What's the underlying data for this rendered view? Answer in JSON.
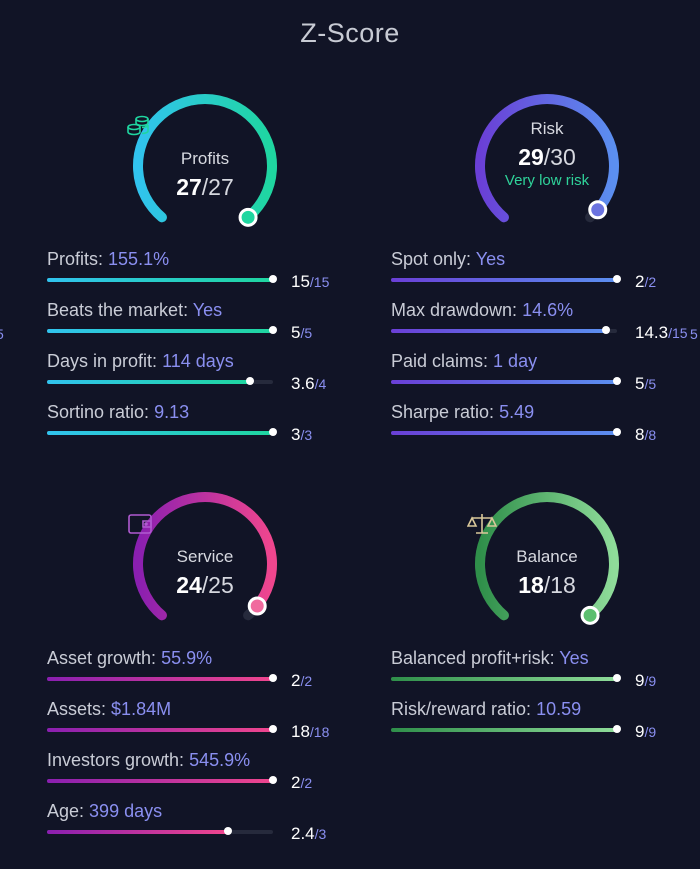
{
  "title": "Z-Score",
  "edge_fragment": "5",
  "edge_fragment_right": "5",
  "colors": {
    "background": "#111426",
    "value_text": "#8a8ff0",
    "profits": [
      "#1fd6a0",
      "#31c3ee"
    ],
    "risk": [
      "#6a3fd6",
      "#5b8ff0"
    ],
    "service": [
      "#8a1fb0",
      "#f0468e"
    ],
    "balance": [
      "#2f8f4a",
      "#8fdc9a"
    ],
    "risk_sub": "#2fd39a"
  },
  "gauges": [
    {
      "id": "profits",
      "label": "Profits",
      "score": "27",
      "max": "/27",
      "sub": "",
      "icon": "coins-icon",
      "fraction": 1.0
    },
    {
      "id": "risk",
      "label": "Risk",
      "score": "29",
      "max": "/30",
      "sub": "Very low risk",
      "icon": "",
      "fraction": 0.967
    },
    {
      "id": "service",
      "label": "Service",
      "score": "24",
      "max": "/25",
      "sub": "",
      "icon": "wallet-icon",
      "fraction": 0.96
    },
    {
      "id": "balance",
      "label": "Balance",
      "score": "18",
      "max": "/18",
      "sub": "",
      "icon": "scales-icon",
      "fraction": 1.0
    }
  ],
  "metrics": {
    "profits": [
      {
        "label": "Profits:",
        "value": "155.1%",
        "score": "15",
        "max": "/15",
        "fraction": 1.0
      },
      {
        "label": "Beats the market:",
        "value": "Yes",
        "score": "5",
        "max": "/5",
        "fraction": 1.0
      },
      {
        "label": "Days in profit:",
        "value": "114 days",
        "score": "3.6",
        "max": "/4",
        "fraction": 0.9
      },
      {
        "label": "Sortino ratio:",
        "value": "9.13",
        "score": "3",
        "max": "/3",
        "fraction": 1.0
      }
    ],
    "risk": [
      {
        "label": "Spot only:",
        "value": "Yes",
        "score": "2",
        "max": "/2",
        "fraction": 1.0
      },
      {
        "label": "Max drawdown:",
        "value": "14.6%",
        "score": "14.3",
        "max": "/15",
        "fraction": 0.953
      },
      {
        "label": "Paid claims:",
        "value": "1 day",
        "score": "5",
        "max": "/5",
        "fraction": 1.0
      },
      {
        "label": "Sharpe ratio:",
        "value": "5.49",
        "score": "8",
        "max": "/8",
        "fraction": 1.0
      }
    ],
    "service": [
      {
        "label": "Asset growth:",
        "value": "55.9%",
        "score": "2",
        "max": "/2",
        "fraction": 1.0
      },
      {
        "label": "Assets:",
        "value": "$1.84M",
        "score": "18",
        "max": "/18",
        "fraction": 1.0
      },
      {
        "label": "Investors growth:",
        "value": "545.9%",
        "score": "2",
        "max": "/2",
        "fraction": 1.0
      },
      {
        "label": "Age:",
        "value": "399 days",
        "score": "2.4",
        "max": "/3",
        "fraction": 0.8
      }
    ],
    "balance": [
      {
        "label": "Balanced profit+risk:",
        "value": "Yes",
        "score": "9",
        "max": "/9",
        "fraction": 1.0
      },
      {
        "label": "Risk/reward ratio:",
        "value": "10.59",
        "score": "9",
        "max": "/9",
        "fraction": 1.0
      }
    ]
  }
}
